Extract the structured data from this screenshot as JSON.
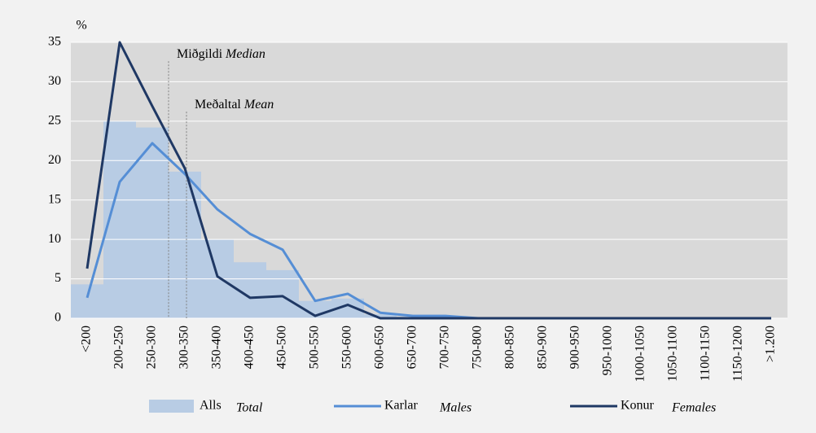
{
  "chart_data": {
    "type": "histogram-lines",
    "y_label": "%",
    "categories": [
      "<200",
      "200-250",
      "250-300",
      "300-350",
      "350-400",
      "400-450",
      "450-500",
      "500-550",
      "550-600",
      "600-650",
      "650-700",
      "700-750",
      "750-800",
      "800-850",
      "850-900",
      "900-950",
      "950-1000",
      "1000-1050",
      "1050-1100",
      "1100-1150",
      "1150-1200",
      ">1.200"
    ],
    "series": [
      {
        "name": "Alls",
        "name_en": "Total",
        "kind": "area",
        "color": "#b8cce4",
        "values": [
          4.3,
          25,
          24.2,
          18.6,
          10,
          7.1,
          6.1,
          2.2,
          2.5,
          0.5,
          0.2,
          0.2,
          0,
          0,
          0,
          0,
          0,
          0,
          0,
          0,
          0,
          0
        ]
      },
      {
        "name": "Karlar",
        "name_en": "Males",
        "kind": "line",
        "color": "#558ed5",
        "values": [
          2.6,
          17.3,
          22.2,
          18.3,
          13.8,
          10.7,
          8.7,
          2.2,
          3.1,
          0.7,
          0.3,
          0.3,
          0,
          0,
          0,
          0,
          0,
          0,
          0,
          0,
          0,
          0
        ]
      },
      {
        "name": "Konur",
        "name_en": "Females",
        "kind": "line",
        "color": "#1f3864",
        "values": [
          6.3,
          35,
          26.9,
          19,
          5.3,
          2.6,
          2.8,
          0.3,
          1.7,
          0,
          0,
          0,
          0,
          0,
          0,
          0,
          0,
          0,
          0,
          0,
          0,
          0
        ]
      }
    ],
    "markers": [
      {
        "label": "Miðgildi",
        "label_en": "Median",
        "x": 2.5,
        "y": 32.6
      },
      {
        "label": "Meðaltal",
        "label_en": "Mean",
        "x": 3.05,
        "y": 26.2
      }
    ],
    "ylim": [
      0,
      35
    ],
    "yticks": [
      0,
      5,
      10,
      15,
      20,
      25,
      30,
      35
    ],
    "grid": true
  }
}
